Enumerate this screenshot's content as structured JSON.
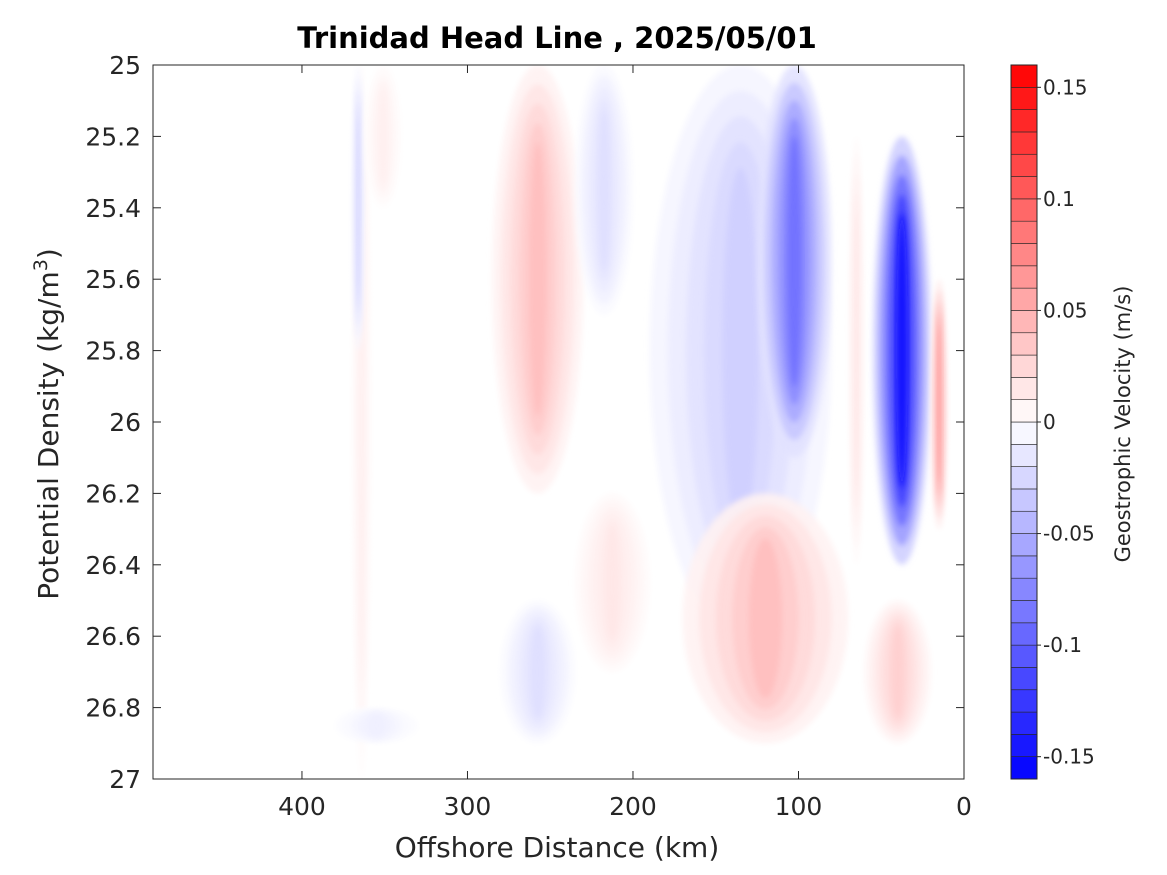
{
  "chart_data": {
    "type": "heatmap",
    "title": "Trinidad Head Line , 2025/05/01",
    "xlabel": "Offshore Distance (km)",
    "ylabel": {
      "main": "Potential Density (kg/m",
      "sup": "3",
      "close": ")"
    },
    "x_reversed": true,
    "xlim": [
      490,
      0
    ],
    "ylim": [
      27,
      25
    ],
    "y_reversed": true,
    "x_ticks": [
      400,
      300,
      200,
      100,
      0
    ],
    "x_tick_labels": [
      "400",
      "300",
      "200",
      "100",
      "0"
    ],
    "y_ticks": [
      25,
      25.2,
      25.4,
      25.6,
      25.8,
      26,
      26.2,
      26.4,
      26.6,
      26.8,
      27
    ],
    "y_tick_labels": [
      "25",
      "25.2",
      "25.4",
      "25.6",
      "25.8",
      "26",
      "26.2",
      "26.4",
      "26.6",
      "26.8",
      "27"
    ],
    "colorbar": {
      "label": "Geostrophic Velocity (m/s)",
      "range": [
        -0.16,
        0.16
      ],
      "ticks": [
        0.15,
        0.1,
        0.05,
        0,
        -0.05,
        -0.1,
        -0.15
      ],
      "tick_labels": [
        "0.15",
        "0.1",
        "0.05",
        "0",
        "-0.05",
        "-0.1",
        "-0.15"
      ],
      "levels": 32,
      "colormap": "blue-white-red",
      "negative_color": "#0000ff",
      "positive_color": "#ff0000",
      "zero_color": "#ffffff"
    },
    "fields": [
      {
        "name": "offshore-positive-narrow",
        "x": [
          370,
          358
        ],
        "y": [
          25.0,
          27.0
        ],
        "value": 0.01
      },
      {
        "name": "offshore-negative-sliver",
        "x": [
          370,
          362
        ],
        "y": [
          25.0,
          25.8
        ],
        "value": -0.025
      },
      {
        "name": "offshore-positive-band",
        "x": [
          362,
          340
        ],
        "y": [
          25.0,
          25.4
        ],
        "value": 0.01
      },
      {
        "name": "offshore-negative-deep",
        "x": [
          380,
          330
        ],
        "y": [
          26.8,
          26.9
        ],
        "value": -0.01
      },
      {
        "name": "positive-core-260km",
        "x": [
          285,
          230
        ],
        "y": [
          25.0,
          26.2
        ],
        "value": 0.04
      },
      {
        "name": "negative-band-220km",
        "x": [
          235,
          200
        ],
        "y": [
          25.0,
          25.7
        ],
        "value": -0.02
      },
      {
        "name": "positive-deep-215km",
        "x": [
          235,
          190
        ],
        "y": [
          26.2,
          26.7
        ],
        "value": 0.015
      },
      {
        "name": "negative-deep-260km",
        "x": [
          280,
          235
        ],
        "y": [
          26.5,
          26.9
        ],
        "value": -0.02
      },
      {
        "name": "negative-broad-150km",
        "x": [
          190,
          80
        ],
        "y": [
          25.0,
          26.6
        ],
        "value": -0.03
      },
      {
        "name": "negative-core-105km",
        "x": [
          125,
          80
        ],
        "y": [
          25.0,
          26.1
        ],
        "value": -0.09
      },
      {
        "name": "positive-deep-110km",
        "x": [
          170,
          70
        ],
        "y": [
          26.2,
          26.9
        ],
        "value": 0.04
      },
      {
        "name": "positive-sliver-65km",
        "x": [
          70,
          60
        ],
        "y": [
          25.2,
          26.4
        ],
        "value": 0.015
      },
      {
        "name": "negative-core-40km",
        "x": [
          55,
          20
        ],
        "y": [
          25.2,
          26.4
        ],
        "value": -0.15
      },
      {
        "name": "positive-edge-15km",
        "x": [
          20,
          10
        ],
        "y": [
          25.6,
          26.3
        ],
        "value": 0.06
      },
      {
        "name": "positive-deep-40km",
        "x": [
          60,
          20
        ],
        "y": [
          26.5,
          26.9
        ],
        "value": 0.03
      }
    ]
  }
}
